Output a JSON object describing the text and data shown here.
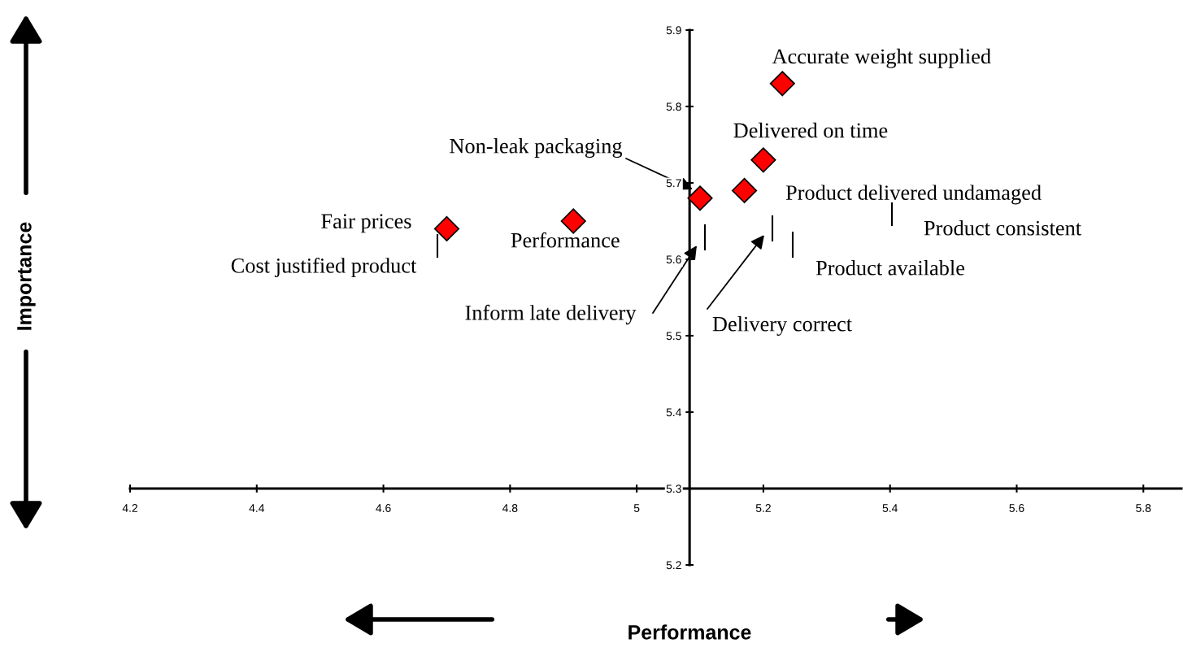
{
  "chart_data": {
    "type": "scatter",
    "xlabel": "Performance",
    "ylabel": "Importance",
    "x": [
      5.23,
      5.2,
      5.17,
      5.1,
      4.9,
      4.7
    ],
    "series": [
      {
        "color": "#ff0000",
        "values": [
          5.83,
          5.73,
          5.69,
          5.68,
          5.65,
          5.64
        ]
      }
    ],
    "marker": "diamond",
    "grid": false,
    "legend": false,
    "xlim": [
      4.2,
      5.86
    ],
    "xticks": [
      4.2,
      4.4,
      4.6,
      4.8,
      5,
      5.2,
      5.4,
      5.6,
      5.8
    ],
    "ylim": [
      5.2,
      5.9
    ],
    "yticks": [
      5.2,
      5.3,
      5.4,
      5.5,
      5.6,
      5.7,
      5.8,
      5.9
    ],
    "annotations": [
      {
        "text": "Accurate weight supplied",
        "x": 5.23,
        "y": 5.83
      },
      {
        "text": "Delivered on time",
        "x": 5.2,
        "y": 5.73
      },
      {
        "text": "Product delivered undamaged",
        "x": 5.17,
        "y": 5.69
      },
      "Non-leak packaging",
      {
        "text": "Performance",
        "x": 4.9,
        "y": 5.65
      },
      {
        "text": "Fair prices",
        "x": 4.7,
        "y": 5.64
      },
      "Cost justified product",
      "Inform late delivery",
      "Delivery correct",
      "Product available",
      "Product consistent"
    ]
  }
}
